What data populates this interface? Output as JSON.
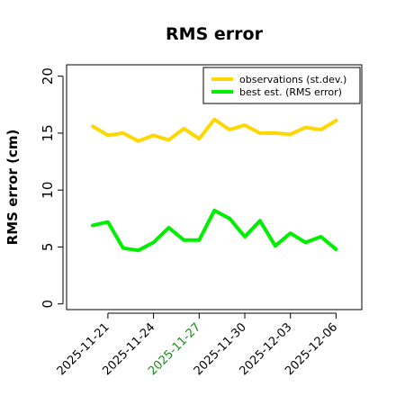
{
  "chart_data": {
    "type": "line",
    "title": "RMS error",
    "xlabel": "",
    "ylabel": "RMS error (cm)",
    "ylim": [
      -0.5,
      21
    ],
    "yticks": [
      0,
      5,
      10,
      15,
      20
    ],
    "xticks": [
      {
        "label": "2025-11-21",
        "index": 1,
        "color": "#000000"
      },
      {
        "label": "2025-11-24",
        "index": 4,
        "color": "#000000"
      },
      {
        "label": "2025-11-27",
        "index": 7,
        "color": "#1a8a1a"
      },
      {
        "label": "2025-11-30",
        "index": 10,
        "color": "#000000"
      },
      {
        "label": "2025-12-03",
        "index": 13,
        "color": "#000000"
      },
      {
        "label": "2025-12-06",
        "index": 16,
        "color": "#000000"
      }
    ],
    "x": [
      "2025-11-20",
      "2025-11-21",
      "2025-11-22",
      "2025-11-23",
      "2025-11-24",
      "2025-11-25",
      "2025-11-26",
      "2025-11-27",
      "2025-11-28",
      "2025-11-29",
      "2025-11-30",
      "2025-12-01",
      "2025-12-02",
      "2025-12-03",
      "2025-12-04",
      "2025-12-05",
      "2025-12-06"
    ],
    "series": [
      {
        "name": "observations (st.dev.)",
        "color": "#ffd700",
        "values": [
          15.6,
          14.8,
          15.0,
          14.3,
          14.8,
          14.4,
          15.4,
          14.5,
          16.2,
          15.3,
          15.7,
          15.0,
          15.0,
          14.9,
          15.5,
          15.3,
          16.1
        ]
      },
      {
        "name": "best est. (RMS error)",
        "color": "#00ee00",
        "values": [
          6.9,
          7.2,
          4.9,
          4.7,
          5.4,
          6.7,
          5.6,
          5.6,
          8.2,
          7.5,
          5.9,
          7.3,
          5.1,
          6.2,
          5.4,
          5.9,
          4.8
        ]
      }
    ],
    "grid": false,
    "legend": "top-right"
  }
}
